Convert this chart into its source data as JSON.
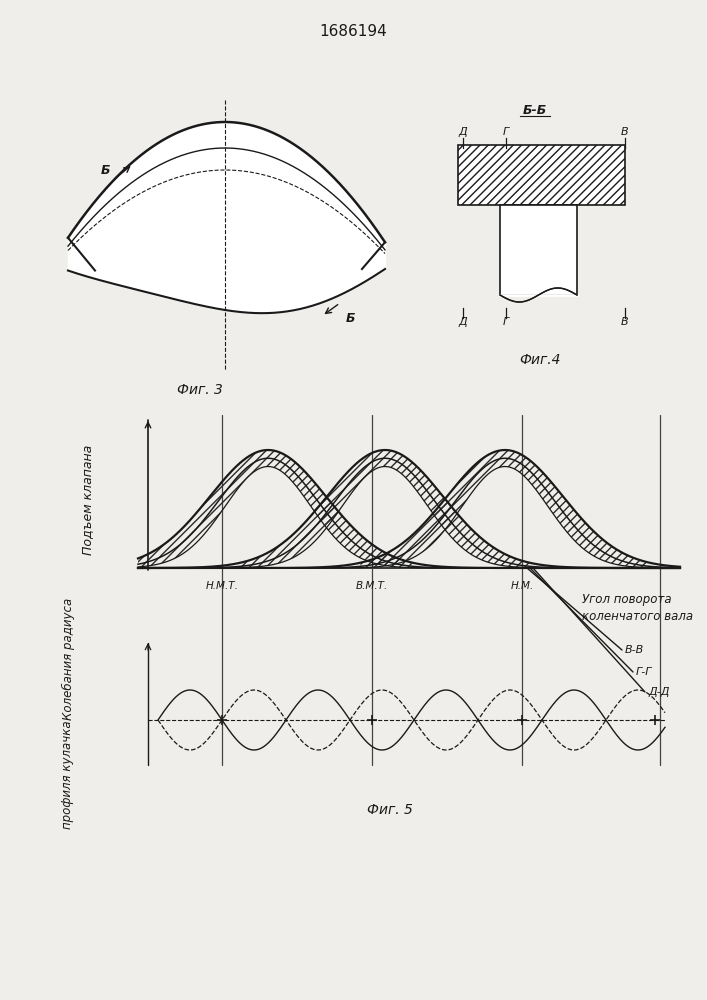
{
  "title": "1686194",
  "fig3_label": "Фиг. 3",
  "fig4_label": "Фиг.4",
  "fig5_label": "Фиг. 5",
  "bg_color": "#f0eeea",
  "line_color": "#1a1a1a",
  "label_B": "Б",
  "label_BB": "Б-Б",
  "label_D_top": "Д",
  "label_G_top": "Г",
  "label_V_top": "В",
  "label_NMT": "Н.М.Т.",
  "label_VMT": "В.М.Т.",
  "label_NM": "Н.М.",
  "xlabel1": "Угол поворота",
  "xlabel2": "коленчатого вала",
  "ylabel_top": "Подъем клапана",
  "ylabel_bot1": "Колебания радиуса",
  "ylabel_bot2": "профиля кулачка",
  "label_VV": "В-В",
  "label_GG": "Г-Г",
  "label_DD": "Д-Д"
}
